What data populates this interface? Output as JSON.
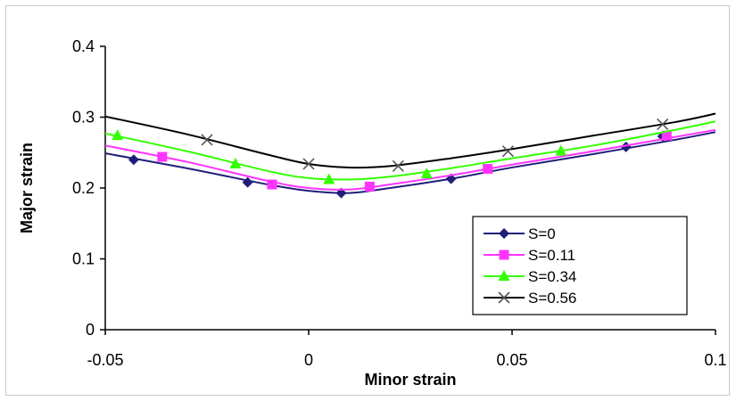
{
  "chart_data": {
    "type": "line",
    "xlabel": "Minor strain",
    "ylabel": "Major strain",
    "xlim": [
      -0.05,
      0.1
    ],
    "ylim": [
      0,
      0.4
    ],
    "x_ticks": [
      "-0.05",
      "0",
      "0.05",
      "0.1"
    ],
    "y_ticks": [
      "0",
      "0.1",
      "0.2",
      "0.3",
      "0.4"
    ],
    "grid": false,
    "legend_position": "bottom-right",
    "series": [
      {
        "name": "S=0",
        "color": "#1f1f7a",
        "marker": "diamond",
        "curve_x": [
          -0.05,
          -0.03,
          -0.01,
          0.0,
          0.01,
          0.02,
          0.035,
          0.05,
          0.07,
          0.09,
          0.1
        ],
        "curve_y": [
          0.249,
          0.228,
          0.205,
          0.196,
          0.193,
          0.2,
          0.213,
          0.229,
          0.248,
          0.268,
          0.279
        ],
        "points_x": [
          -0.043,
          -0.015,
          0.008,
          0.035,
          0.078,
          0.087
        ],
        "points_y": [
          0.24,
          0.208,
          0.193,
          0.213,
          0.258,
          0.273
        ]
      },
      {
        "name": "S=0.11",
        "color": "#ff33ff",
        "marker": "square",
        "curve_x": [
          -0.05,
          -0.03,
          -0.01,
          0.0,
          0.01,
          0.02,
          0.035,
          0.05,
          0.07,
          0.09,
          0.1
        ],
        "curve_y": [
          0.26,
          0.237,
          0.21,
          0.2,
          0.198,
          0.205,
          0.218,
          0.233,
          0.252,
          0.272,
          0.282
        ],
        "points_x": [
          -0.036,
          -0.009,
          0.015,
          0.044,
          0.088
        ],
        "points_y": [
          0.244,
          0.205,
          0.202,
          0.227,
          0.274
        ]
      },
      {
        "name": "S=0.34",
        "color": "#33ff00",
        "marker": "triangle",
        "curve_x": [
          -0.05,
          -0.03,
          -0.01,
          0.0,
          0.01,
          0.02,
          0.035,
          0.05,
          0.07,
          0.09,
          0.1
        ],
        "curve_y": [
          0.277,
          0.252,
          0.224,
          0.214,
          0.212,
          0.216,
          0.228,
          0.242,
          0.26,
          0.282,
          0.294
        ],
        "points_x": [
          -0.047,
          -0.018,
          0.005,
          0.029,
          0.062
        ],
        "points_y": [
          0.274,
          0.234,
          0.212,
          0.22,
          0.252
        ]
      },
      {
        "name": "S=0.56",
        "color": "#000000",
        "marker": "x",
        "curve_x": [
          -0.05,
          -0.03,
          -0.01,
          0.0,
          0.01,
          0.02,
          0.035,
          0.05,
          0.07,
          0.09,
          0.1
        ],
        "curve_y": [
          0.301,
          0.276,
          0.247,
          0.234,
          0.229,
          0.231,
          0.242,
          0.255,
          0.274,
          0.293,
          0.305
        ],
        "points_x": [
          -0.025,
          0.0,
          0.022,
          0.049,
          0.087
        ],
        "points_y": [
          0.268,
          0.234,
          0.231,
          0.252,
          0.29
        ]
      }
    ]
  }
}
